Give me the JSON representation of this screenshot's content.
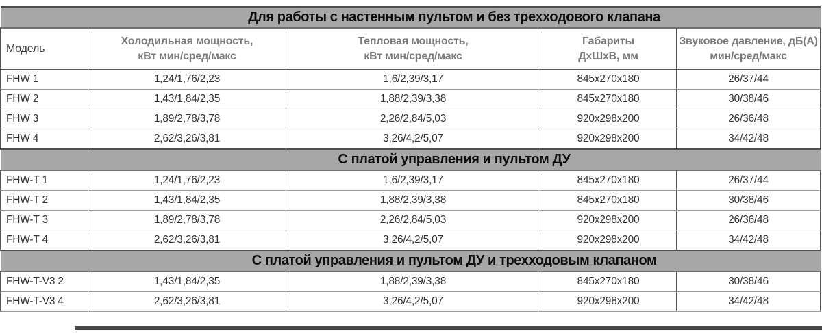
{
  "colors": {
    "banner_background": "#a7a7a7",
    "banner_text": "#0d0d0d",
    "header_text": "#7b7b7b",
    "data_text": "#333333"
  },
  "table": {
    "column_keys": [
      "model",
      "cooling",
      "heating",
      "dimensions",
      "sound"
    ],
    "headers": [
      "Модель",
      "Холодильная мощность,\nкВт мин/сред/макс",
      "Тепловая мощность,\nкВт мин/сред/макс",
      "Габариты\nДхШхВ, мм",
      "Звуковое давление, дБ(А)\nмин/сред/макс"
    ],
    "sections": [
      {
        "banner": "Для работы с настенным пультом и без трехходового клапана",
        "rows": [
          {
            "model": "FHW 1",
            "cooling": "1,24/1,76/2,23",
            "heating": "1,6/2,39/3,17",
            "dimensions": "845x270x180",
            "sound": "26/37/44"
          },
          {
            "model": "FHW 2",
            "cooling": "1,43/1,84/2,35",
            "heating": "1,88/2,39/3,38",
            "dimensions": "845x270x180",
            "sound": "30/38/46"
          },
          {
            "model": "FHW 3",
            "cooling": "1,89/2,78/3,78",
            "heating": "2,26/2,84/5,03",
            "dimensions": "920x298x200",
            "sound": "26/36/48"
          },
          {
            "model": "FHW 4",
            "cooling": "2,62/3,26/3,81",
            "heating": "3,26/4,2/5,07",
            "dimensions": "920x298x200",
            "sound": "34/42/48"
          }
        ]
      },
      {
        "banner": "С платой управления и пультом ДУ",
        "rows": [
          {
            "model": "FHW-T 1",
            "cooling": "1,24/1,76/2,23",
            "heating": "1,6/2,39/3,17",
            "dimensions": "845x270x180",
            "sound": "26/37/44"
          },
          {
            "model": "FHW-T 2",
            "cooling": "1,43/1,84/2,35",
            "heating": "1,88/2,39/3,38",
            "dimensions": "845x270x180",
            "sound": "30/38/46"
          },
          {
            "model": "FHW-T 3",
            "cooling": "1,89/2,78/3,78",
            "heating": "2,26/2,84/5,03",
            "dimensions": "920x298x200",
            "sound": "26/36/48"
          },
          {
            "model": "FHW-T 4",
            "cooling": "2,62/3,26/3,81",
            "heating": "3,26/4,2/5,07",
            "dimensions": "920x298x200",
            "sound": "34/42/48"
          }
        ]
      },
      {
        "banner": "С платой управления и пультом ДУ и трехходовым клапаном",
        "rows": [
          {
            "model": "FHW-T-V3 2",
            "cooling": "1,43/1,84/2,35",
            "heating": "1,88/2,39/3,38",
            "dimensions": "845x270x180",
            "sound": "30/38/46"
          },
          {
            "model": "FHW-T-V3 4",
            "cooling": "2,62/3,26/3,81",
            "heating": "3,26/4,2/5,07",
            "dimensions": "920x298x200",
            "sound": "34/42/48"
          }
        ]
      }
    ]
  }
}
